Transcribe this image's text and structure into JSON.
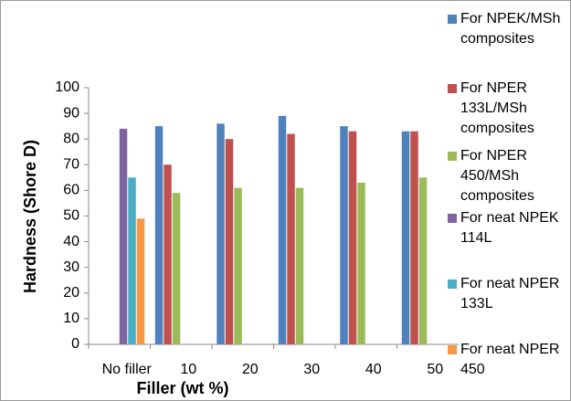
{
  "chart_data": {
    "type": "bar",
    "categories": [
      "No filler",
      "10",
      "20",
      "30",
      "40",
      "50"
    ],
    "series": [
      {
        "name": "For NPEK/MSh composites",
        "color": "#4f81bd",
        "values": [
          null,
          85,
          86,
          89,
          85,
          83
        ]
      },
      {
        "name": "For NPER 133L/MSh composites",
        "color": "#c0504d",
        "values": [
          null,
          70,
          80,
          82,
          83,
          83
        ]
      },
      {
        "name": "For NPER 450/MSh composites",
        "color": "#9bbb59",
        "values": [
          null,
          59,
          61,
          61,
          63,
          65
        ]
      },
      {
        "name": "For neat NPEK 114L",
        "color": "#8064a2",
        "values": [
          84,
          null,
          null,
          null,
          null,
          null
        ]
      },
      {
        "name": "For neat NPER 133L",
        "color": "#4bacc6",
        "values": [
          65,
          null,
          null,
          null,
          null,
          null
        ]
      },
      {
        "name": "For neat NPER 450",
        "color": "#f79646",
        "values": [
          49,
          null,
          null,
          null,
          null,
          null
        ]
      }
    ],
    "x_label": "Filler (wt %)",
    "y_label": "Hardness (Shore D)",
    "ylim": [
      0,
      100
    ],
    "yticks": [
      0,
      10,
      20,
      30,
      40,
      50,
      60,
      70,
      80,
      90,
      100
    ]
  }
}
